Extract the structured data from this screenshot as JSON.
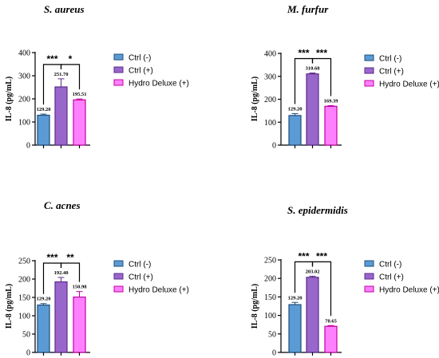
{
  "colors": {
    "ctrl_neg": "#5b9bd5",
    "ctrl_pos": "#9966cc",
    "hydro": "#ff80ff",
    "ctrl_neg_edge": "#1f4e79",
    "ctrl_pos_edge": "#5b2c8a",
    "hydro_edge": "#c000a0"
  },
  "legend": [
    "Ctrl (-)",
    "Ctrl (+)",
    "Hydro Deluxe (+)"
  ],
  "chart_data": [
    {
      "type": "bar",
      "title": "S. aureus",
      "ylabel": "IL-8 (pg/mL)",
      "ylim": [
        0,
        400
      ],
      "yticks": [
        "0",
        "100",
        "200",
        "300",
        "400"
      ],
      "categories": [
        "Ctrl (-)",
        "Ctrl (+)",
        "Hydro Deluxe (+)"
      ],
      "values": [
        129.2,
        251.7,
        195.51
      ],
      "errors": [
        5,
        35,
        4
      ],
      "value_labels": [
        "129.20",
        "251.70",
        "195.51"
      ],
      "significance": [
        {
          "from": 0,
          "to": 1,
          "label": "***"
        },
        {
          "from": 1,
          "to": 2,
          "label": "*"
        }
      ]
    },
    {
      "type": "bar",
      "title": "M. furfur",
      "ylabel": "IL-8 (pg/mL)",
      "ylim": [
        0,
        400
      ],
      "yticks": [
        "0",
        "100",
        "200",
        "300",
        "400"
      ],
      "categories": [
        "Ctrl (-)",
        "Ctrl (+)",
        "Hydro Deluxe (+)"
      ],
      "values": [
        129.2,
        310.68,
        169.39
      ],
      "errors": [
        8,
        4,
        3
      ],
      "value_labels": [
        "129.20",
        "310.68",
        "169.39"
      ],
      "significance": [
        {
          "from": 0,
          "to": 1,
          "label": "***"
        },
        {
          "from": 1,
          "to": 2,
          "label": "***"
        }
      ]
    },
    {
      "type": "bar",
      "title": "C. acnes",
      "ylabel": "IL-8 (pg/mL)",
      "ylim": [
        0,
        250
      ],
      "yticks": [
        "0",
        "50",
        "100",
        "150",
        "200",
        "250"
      ],
      "categories": [
        "Ctrl (-)",
        "Ctrl (+)",
        "Hydro Deluxe (+)"
      ],
      "values": [
        129.2,
        192.4,
        150.98
      ],
      "errors": [
        4,
        12,
        15
      ],
      "value_labels": [
        "129.20",
        "192.40",
        "150.98"
      ],
      "significance": [
        {
          "from": 0,
          "to": 1,
          "label": "***"
        },
        {
          "from": 1,
          "to": 2,
          "label": "**"
        }
      ]
    },
    {
      "type": "bar",
      "title": "S. epidermidis",
      "ylabel": "IL-8 (pg/mL)",
      "ylim": [
        0,
        250
      ],
      "yticks": [
        "0",
        "50",
        "100",
        "150",
        "200",
        "250"
      ],
      "categories": [
        "Ctrl (-)",
        "Ctrl (+)",
        "Hydro Deluxe (+)"
      ],
      "values": [
        129.2,
        203.02,
        70.65
      ],
      "errors": [
        6,
        3,
        2
      ],
      "value_labels": [
        "129.20",
        "203.02",
        "70.65"
      ],
      "significance": [
        {
          "from": 0,
          "to": 1,
          "label": "***"
        },
        {
          "from": 1,
          "to": 2,
          "label": "***"
        }
      ]
    }
  ]
}
